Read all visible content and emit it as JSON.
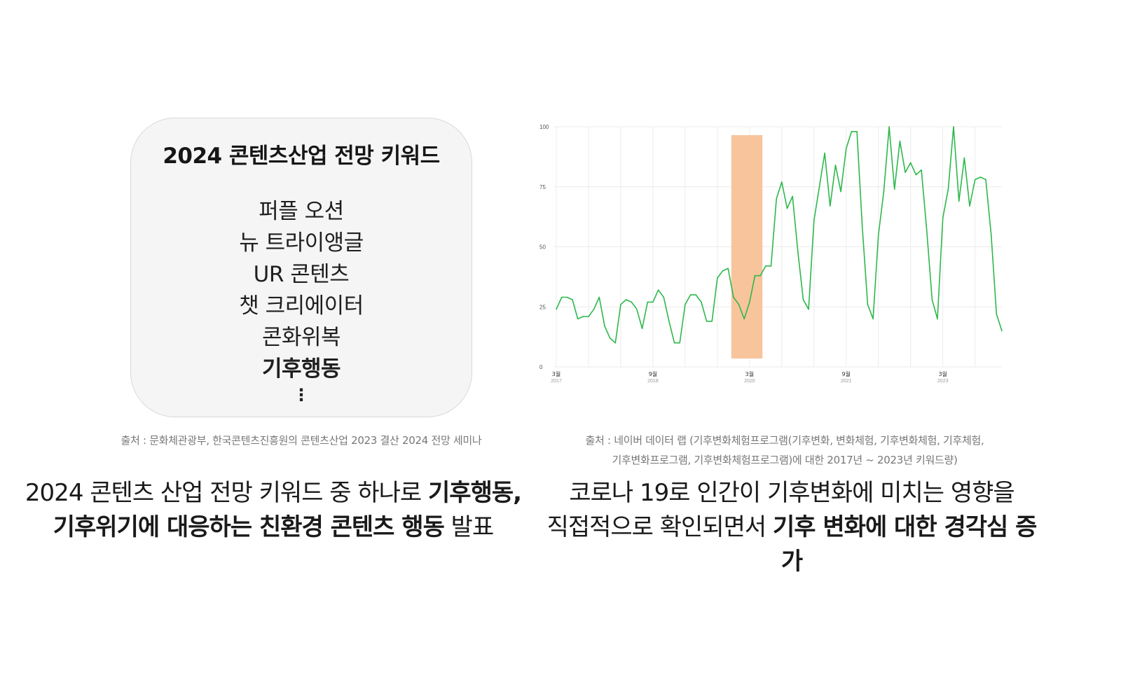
{
  "keyword_card": {
    "title": "2024 콘텐츠산업 전망 키워드",
    "items": [
      "퍼플 오션",
      "뉴 트라이앵글",
      "UR 콘텐츠",
      "챗 크리에이터",
      "콘화위복",
      "기후행동"
    ],
    "more": "⋮"
  },
  "left_source": "출처 : 문화체관광부, 한국콘텐츠진흥원의 콘텐츠산업 2023 결산 2024 전망 세미나",
  "left_caption": {
    "line1_plain": "2024 콘텐츠 산업 전망 키워드 중 하나로 ",
    "line1_bold": "기후행동,",
    "line2_bold": "기후위기에 대응하는 친환경 콘텐츠 행동",
    "line2_plain": " 발표"
  },
  "right_source": {
    "line1": "출처 : 네이버 데이터 랩 (기후변화체험프로그램(기후변화, 변화체험, 기후변화체험, 기후체험,",
    "line2": "기후변화프로그램, 기후변화체험프로그램)에 대한 2017년 ~ 2023년 키워드량)"
  },
  "right_caption": {
    "line1": "코로나 19로 인간이 기후변화에 미치는 영향을",
    "line2_plain": "직접적으로 확인되면서 ",
    "line2_bold": "기후 변화에 대한 경각심 증가"
  },
  "colors": {
    "line": "#2db84b",
    "highlight": "#f8c49c",
    "grid": "#ececec"
  },
  "chart_data": {
    "type": "line",
    "ylim": [
      0,
      100
    ],
    "y_ticks": [
      "0",
      "25",
      "50",
      "75",
      "100"
    ],
    "x_ticks": [
      {
        "month": "3월",
        "year": "2017"
      },
      {
        "month": "9월",
        "year": "2018"
      },
      {
        "month": "3월",
        "year": "2020"
      },
      {
        "month": "9월",
        "year": "2021"
      },
      {
        "month": "3월",
        "year": "2023"
      }
    ],
    "highlight_range": [
      "2019-12",
      "2020-05"
    ],
    "series": [
      {
        "values": [
          24,
          29,
          29,
          28,
          20,
          21,
          21,
          24,
          29,
          17,
          12,
          10,
          26,
          28,
          27,
          24,
          16,
          27,
          27,
          32,
          29,
          19,
          10,
          10,
          26,
          30,
          30,
          27,
          19,
          19,
          37,
          40,
          41,
          29,
          26,
          20,
          27,
          38,
          38,
          42,
          42,
          70,
          77,
          66,
          71,
          48,
          28,
          24,
          61,
          75,
          89,
          67,
          84,
          73,
          91,
          98,
          98,
          58,
          26,
          20,
          55,
          73,
          100,
          74,
          94,
          81,
          85,
          80,
          82,
          57,
          28,
          20,
          62,
          74,
          100,
          69,
          87,
          67,
          78,
          79,
          78,
          55,
          22,
          15
        ]
      }
    ]
  }
}
